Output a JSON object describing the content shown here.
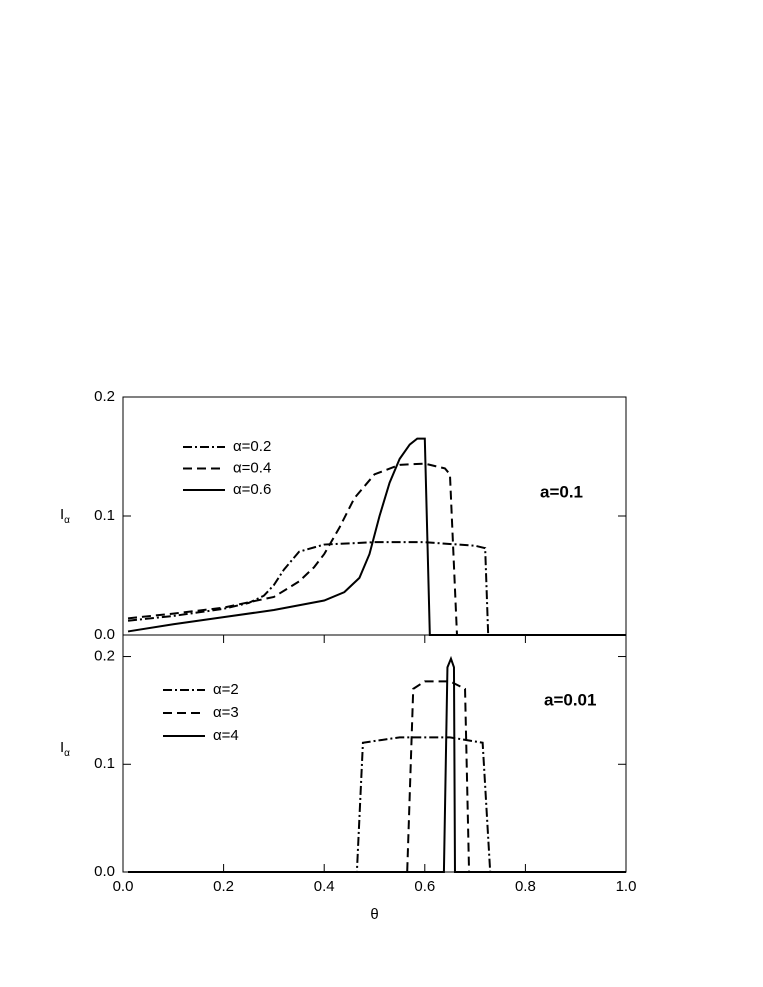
{
  "chart_data": [
    {
      "type": "line",
      "ylabel": "I",
      "ylabel_sub": "α",
      "annotation": "a=0.1",
      "xlim": [
        0,
        1
      ],
      "ylim": [
        0,
        0.2
      ],
      "yticks": [
        {
          "value": 0,
          "label": "0.0"
        },
        0.1,
        0.2
      ],
      "series": [
        {
          "name": "α=0.2",
          "color": "#000000",
          "style": "dashdot",
          "x": [
            0.01,
            0.1,
            0.2,
            0.25,
            0.28,
            0.3,
            0.32,
            0.35,
            0.4,
            0.5,
            0.6,
            0.7,
            0.72,
            0.726,
            1.0
          ],
          "values": [
            0.012,
            0.016,
            0.022,
            0.027,
            0.033,
            0.042,
            0.055,
            0.07,
            0.076,
            0.078,
            0.078,
            0.075,
            0.073,
            0,
            0
          ]
        },
        {
          "name": "α=0.4",
          "color": "#000000",
          "style": "dashed",
          "x": [
            0.01,
            0.1,
            0.2,
            0.3,
            0.35,
            0.38,
            0.4,
            0.43,
            0.46,
            0.5,
            0.55,
            0.6,
            0.64,
            0.65,
            0.664,
            1.0
          ],
          "values": [
            0.014,
            0.018,
            0.023,
            0.032,
            0.045,
            0.057,
            0.068,
            0.09,
            0.115,
            0.135,
            0.143,
            0.144,
            0.14,
            0.135,
            0,
            0
          ]
        },
        {
          "name": "α=0.6",
          "color": "#000000",
          "style": "solid",
          "x": [
            0.01,
            0.1,
            0.2,
            0.3,
            0.4,
            0.44,
            0.47,
            0.49,
            0.51,
            0.53,
            0.55,
            0.57,
            0.585,
            0.6,
            0.61,
            1.0
          ],
          "values": [
            0.003,
            0.009,
            0.015,
            0.021,
            0.029,
            0.036,
            0.048,
            0.068,
            0.1,
            0.128,
            0.148,
            0.16,
            0.165,
            0.165,
            0,
            0
          ]
        }
      ]
    },
    {
      "type": "line",
      "ylabel": "I",
      "ylabel_sub": "α",
      "annotation": "a=0.01",
      "xlabel": "θ",
      "xlim": [
        0,
        1
      ],
      "ylim": [
        0,
        0.22
      ],
      "xticks": [
        {
          "value": 0,
          "label": "0.0"
        },
        0.2,
        0.4,
        0.6,
        0.8,
        {
          "value": 1,
          "label": "1.0"
        }
      ],
      "yticks": [
        {
          "value": 0,
          "label": "0.0"
        },
        0.1,
        0.2
      ],
      "series": [
        {
          "name": "α=2",
          "color": "#000000",
          "style": "dashdot",
          "x": [
            0.01,
            0.465,
            0.477,
            0.55,
            0.65,
            0.715,
            0.73,
            1.0
          ],
          "values": [
            0,
            0,
            0.12,
            0.125,
            0.125,
            0.12,
            0,
            0
          ]
        },
        {
          "name": "α=3",
          "color": "#000000",
          "style": "dashed",
          "x": [
            0.01,
            0.565,
            0.577,
            0.6,
            0.65,
            0.68,
            0.688,
            1.0
          ],
          "values": [
            0,
            0,
            0.17,
            0.177,
            0.177,
            0.17,
            0,
            0
          ]
        },
        {
          "name": "α=4",
          "color": "#000000",
          "style": "solid",
          "x": [
            0.01,
            0.638,
            0.645,
            0.652,
            0.658,
            0.66,
            1.0
          ],
          "values": [
            0,
            0,
            0.19,
            0.198,
            0.19,
            0,
            0
          ]
        }
      ]
    }
  ]
}
